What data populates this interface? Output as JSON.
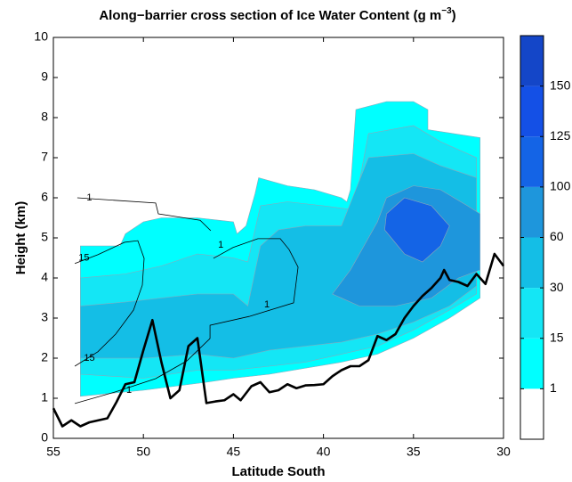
{
  "chart_data": {
    "type": "contour",
    "title": "Along−barrier cross section of Ice Water Content (g m",
    "title_exponent": "−3",
    "title_end": ")",
    "xlabel": "Latitude South",
    "ylabel": "Height (km)",
    "xlim": [
      55,
      30
    ],
    "xticks": [
      55,
      50,
      45,
      40,
      35,
      30
    ],
    "ylim": [
      0,
      10
    ],
    "yticks": [
      0,
      1,
      2,
      3,
      4,
      5,
      6,
      7,
      8,
      9,
      10
    ],
    "colorbar": {
      "ticks": [
        1,
        15,
        30,
        60,
        100,
        125,
        150
      ],
      "colors": [
        "#ffffff",
        "#00ffff",
        "#14e6f5",
        "#14bee6",
        "#1e96dc",
        "#1464e6",
        "#1450e6",
        "#1446c8"
      ]
    },
    "regions": [
      {
        "level": 1,
        "x": [
          53.5,
          53.5,
          51.3,
          51,
          50,
          49,
          47,
          45,
          44.8,
          44.3,
          43.8,
          43.6,
          42,
          40.5,
          39,
          38.7,
          38.5,
          38.2,
          36.5,
          35,
          34.2,
          34.2,
          31.3,
          31.3,
          33,
          35,
          37,
          39,
          41,
          43,
          45,
          46.5,
          50,
          53.5
        ],
        "y": [
          1.05,
          4.8,
          4.8,
          5.1,
          5.4,
          5.5,
          5.5,
          5.4,
          5.1,
          5.3,
          6.1,
          6.5,
          6.3,
          6.2,
          6.0,
          5.9,
          6.2,
          8.2,
          8.4,
          8.4,
          8.2,
          7.7,
          7.5,
          3.5,
          3.0,
          2.5,
          2.1,
          1.9,
          1.75,
          1.6,
          1.5,
          1.4,
          1.2,
          1.05
        ]
      },
      {
        "level": 15,
        "x": [
          53.5,
          53.5,
          51,
          49,
          47,
          45,
          44.2,
          43.5,
          42,
          40,
          38.3,
          37.5,
          35,
          33.5,
          31.5,
          31.5,
          33,
          35,
          37,
          39,
          41,
          43,
          45,
          47,
          50,
          53.5
        ],
        "y": [
          1.6,
          4.0,
          4.1,
          4.3,
          4.6,
          4.5,
          4.4,
          5.8,
          5.9,
          5.8,
          5.7,
          7.6,
          7.8,
          7.4,
          7.0,
          3.6,
          3.2,
          2.7,
          2.3,
          2.1,
          1.9,
          1.8,
          1.7,
          1.7,
          1.5,
          1.6
        ]
      },
      {
        "level": 30,
        "x": [
          53.5,
          53.5,
          51,
          49,
          47,
          45,
          44.2,
          43.5,
          42.5,
          41,
          39,
          37.5,
          35,
          33.5,
          31.5,
          31.5,
          33,
          35,
          37,
          39,
          41,
          43,
          45,
          47,
          50,
          53.5
        ],
        "y": [
          2.0,
          3.3,
          3.4,
          3.5,
          3.6,
          3.6,
          3.3,
          4.8,
          5.2,
          5.3,
          5.3,
          7.0,
          7.1,
          6.8,
          6.5,
          3.8,
          3.3,
          2.9,
          2.6,
          2.4,
          2.3,
          2.2,
          2.0,
          2.1,
          2.0,
          2.0
        ]
      },
      {
        "level": 60,
        "x": [
          39.5,
          38.5,
          37,
          36.5,
          35,
          33.5,
          32,
          31.3,
          31.3,
          32.5,
          34,
          36,
          38
        ],
        "y": [
          3.6,
          4.2,
          5.4,
          6.0,
          6.3,
          6.2,
          5.8,
          5.6,
          4.2,
          4.0,
          3.5,
          3.3,
          3.3
        ]
      },
      {
        "level": 100,
        "x": [
          36.6,
          36.5,
          35.5,
          34,
          33,
          33.5,
          34.5,
          35.5
        ],
        "y": [
          5.2,
          5.6,
          6.0,
          5.8,
          5.3,
          4.8,
          4.4,
          4.6
        ]
      }
    ],
    "contours": [
      {
        "level": 1,
        "x": [
          53.67,
          49.32,
          49.17,
          46.85,
          46.35,
          46.26
        ],
        "y": [
          6.0,
          5.87,
          5.6,
          5.44,
          5.22,
          5.18
        ],
        "labels": [
          {
            "x": 53.0,
            "y": 6.0
          }
        ]
      },
      {
        "level": 15,
        "x": [
          53.81,
          52.53,
          51.05,
          50.31,
          49.96,
          50.06,
          50.55,
          51.54,
          52.53,
          53.81
        ],
        "y": [
          4.36,
          4.58,
          4.89,
          4.93,
          4.49,
          3.82,
          3.2,
          2.6,
          2.16,
          1.8
        ],
        "labels": [
          {
            "x": 53.3,
            "y": 4.5
          },
          {
            "x": 53.0,
            "y": 2.0
          }
        ]
      },
      {
        "level": 1,
        "x": [
          46.3,
          46.3,
          44.13,
          41.66,
          41.41,
          41.91,
          42.4,
          43.64,
          45.02,
          46.11
        ],
        "y": [
          2.49,
          2.82,
          3.04,
          3.38,
          4.27,
          4.71,
          4.98,
          4.98,
          4.76,
          4.49
        ],
        "labels": [
          {
            "x": 45.7,
            "y": 4.82
          },
          {
            "x": 43.14,
            "y": 3.33
          }
        ]
      },
      {
        "level": 1,
        "x": [
          53.81,
          51.54,
          49.32,
          47.59,
          46.3
        ],
        "y": [
          0.87,
          1.16,
          1.49,
          1.93,
          2.49
        ],
        "labels": [
          {
            "x": 50.8,
            "y": 1.2
          }
        ]
      }
    ],
    "terrain": {
      "x": [
        55,
        54.5,
        54,
        53.5,
        53,
        52.5,
        52,
        51.5,
        51,
        50.5,
        50,
        49.5,
        49,
        48.5,
        48,
        47.5,
        47,
        46.5,
        46,
        45.5,
        45,
        44.6,
        44,
        43.5,
        43,
        42.5,
        42,
        41.5,
        41,
        40.5,
        40,
        39.5,
        39,
        38.5,
        38,
        37.5,
        37,
        36.5,
        36,
        35.5,
        35,
        34.5,
        34,
        33.5,
        33.3,
        33,
        32.5,
        32,
        31.5,
        31,
        30.5,
        30
      ],
      "y": [
        0.75,
        0.3,
        0.45,
        0.3,
        0.4,
        0.45,
        0.5,
        0.9,
        1.35,
        1.4,
        2.2,
        2.95,
        1.9,
        1.0,
        1.2,
        2.3,
        2.5,
        0.88,
        0.92,
        0.95,
        1.1,
        0.95,
        1.3,
        1.4,
        1.15,
        1.2,
        1.35,
        1.25,
        1.32,
        1.33,
        1.35,
        1.55,
        1.7,
        1.8,
        1.8,
        1.95,
        2.55,
        2.45,
        2.6,
        3.0,
        3.3,
        3.55,
        3.75,
        4.0,
        4.2,
        3.95,
        3.9,
        3.8,
        4.1,
        3.85,
        4.6,
        4.3
      ]
    }
  }
}
